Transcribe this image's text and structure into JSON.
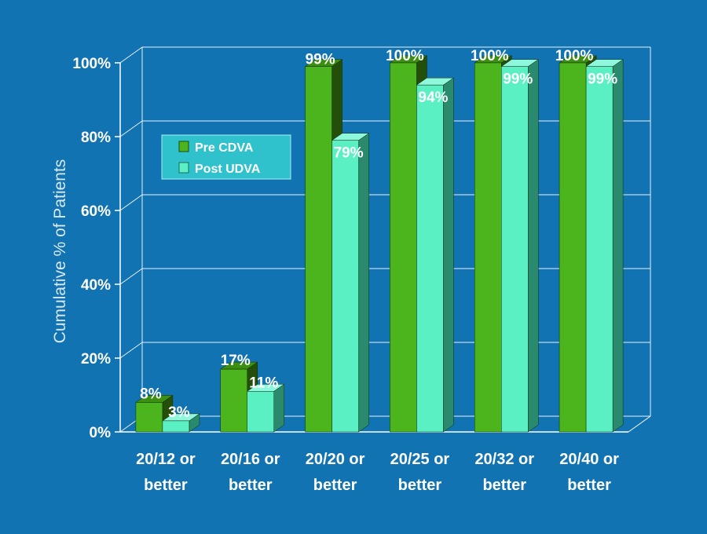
{
  "chart_data": {
    "type": "bar",
    "title": "",
    "xlabel": "",
    "ylabel": "Cumulative % of Patients",
    "ylim": [
      0,
      100
    ],
    "yticks": [
      "0%",
      "20%",
      "40%",
      "60%",
      "80%",
      "100%"
    ],
    "categories": [
      [
        "20/12 or",
        "better"
      ],
      [
        "20/16 or",
        "better"
      ],
      [
        "20/20 or",
        "better"
      ],
      [
        "20/25 or",
        "better"
      ],
      [
        "20/32 or",
        "better"
      ],
      [
        "20/40 or",
        "better"
      ]
    ],
    "series": [
      {
        "name": "Pre CDVA",
        "values": [
          8,
          17,
          99,
          100,
          100,
          100
        ],
        "labels": [
          "8%",
          "17%",
          "99%",
          "100%",
          "100%",
          "100%"
        ],
        "color": "#4cb51d"
      },
      {
        "name": "Post UDVA",
        "values": [
          3,
          11,
          79,
          94,
          99,
          99
        ],
        "labels": [
          "3%",
          "11%",
          "79%",
          "94%",
          "99%",
          "99%"
        ],
        "color": "#5af0c4"
      }
    ],
    "grid": true,
    "legend_position": "top-left"
  }
}
